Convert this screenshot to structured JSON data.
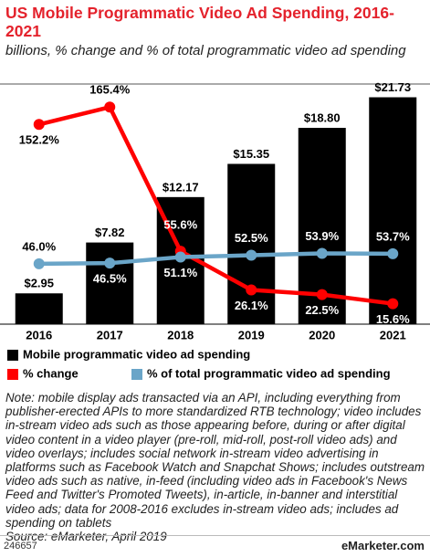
{
  "chart_data": {
    "type": "bar_line",
    "title": "US Mobile Programmatic Video Ad Spending, 2016-2021",
    "subtitle": "billions, % change and % of total programmatic video ad spending",
    "categories": [
      "2016",
      "2017",
      "2018",
      "2019",
      "2020",
      "2021"
    ],
    "ylim": [
      0,
      23
    ],
    "y2lim": [
      0,
      183
    ],
    "series": [
      {
        "name": "Mobile programmatic video ad spending",
        "color": "#000000",
        "kind": "bar",
        "values": [
          2.95,
          7.82,
          12.17,
          15.35,
          18.8,
          21.73
        ],
        "value_labels": [
          "$2.95",
          "$7.82",
          "$12.17",
          "$15.35",
          "$18.80",
          "$21.73"
        ]
      },
      {
        "name": "% change",
        "color": "#ff0000",
        "kind": "line",
        "axis": "y2",
        "values": [
          152.2,
          165.4,
          55.6,
          26.1,
          22.5,
          15.6
        ],
        "value_labels": [
          "152.2%",
          "165.4%",
          "55.6%",
          "26.1%",
          "22.5%",
          "15.6%"
        ]
      },
      {
        "name": "% of total programmatic video ad spending",
        "color": "#6aa5c8",
        "kind": "line",
        "axis": "y2",
        "values": [
          46.0,
          46.5,
          51.1,
          52.5,
          53.9,
          53.7
        ],
        "value_labels": [
          "46.0%",
          "46.5%",
          "51.1%",
          "52.5%",
          "53.9%",
          "53.7%"
        ]
      }
    ],
    "note": "Note: mobile display ads transacted via an API, including everything from publisher-erected APIs to more standardized RTB technology; video includes in-stream video ads such as those appearing before, during or after digital video content in a video player (pre-roll, mid-roll, post-roll video ads) and video overlays; includes social network in-stream video advertising in platforms such as Facebook Watch and Snapchat Shows; includes outstream video ads such as native, in-feed (including video ads in Facebook's News Feed and Twitter's Promoted Tweets), in-article, in-banner and interstitial video ads; data for 2008-2016 excludes in-stream video ads; includes ad spending on tablets",
    "source": "Source: eMarketer, April 2019",
    "chart_id": "246657",
    "logo": "eMarketer.com"
  }
}
